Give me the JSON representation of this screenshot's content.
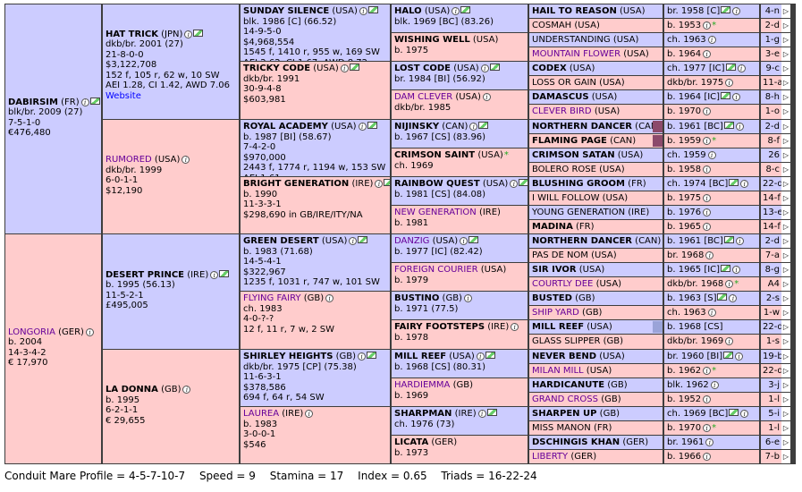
{
  "gen1": [
    {
      "name": "DABIRSIM",
      "country": "(FR)",
      "details": [
        "blk/br. 2009 (27)",
        "7-5-1-0",
        "€476,480"
      ]
    },
    {
      "name": "LONGORIA",
      "country": "(GER)",
      "details": [
        "b. 2004",
        "14-3-4-2",
        "€ 17,970"
      ]
    }
  ],
  "gen2": [
    {
      "name": "HAT TRICK",
      "country": "(JPN)",
      "details": [
        "dkb/br. 2001 (27)",
        "21-8-0-0",
        "$3,122,708",
        "152 f, 105 r, 62 w, 10 SW",
        "AEI 1.28, CI 1.42, AWD 7.06"
      ],
      "website": "Website"
    },
    {
      "name": "RUMORED",
      "country": "(USA)",
      "details": [
        "dkb/br. 1999",
        "6-0-1-1",
        "$12,190"
      ]
    },
    {
      "name": "DESERT PRINCE",
      "country": "(IRE)",
      "details": [
        "b. 1995 (56.13)",
        "11-5-2-1",
        "£495,005"
      ]
    },
    {
      "name": "LA DONNA",
      "country": "(GB)",
      "details": [
        "b. 1995",
        "6-2-1-1",
        "€ 29,655"
      ]
    }
  ],
  "gen3": [
    {
      "name": "SUNDAY SILENCE",
      "country": "(USA)",
      "details": [
        "blk. 1986 [C] (66.52)",
        "14-9-5-0",
        "$4,968,554",
        "1545 f, 1410 r, 955 w, 169 SW",
        "AEI 2.62, CI 1.67, AWD 8.72"
      ]
    },
    {
      "name": "TRICKY CODE",
      "country": "(USA)",
      "details": [
        "dkb/br. 1991",
        "30-9-4-8",
        "$603,981"
      ]
    },
    {
      "name": "ROYAL ACADEMY",
      "country": "(USA)",
      "details": [
        "b. 1987 [BI] (58.67)",
        "7-4-2-0",
        "$970,000",
        "2443 f, 1774 r, 1194 w, 153 SW",
        "AEI 1.61"
      ]
    },
    {
      "name": "BRIGHT GENERATION",
      "country": "(IRE)",
      "details": [
        "b. 1990",
        "11-3-3-1",
        "$298,690 in GB/IRE/ITY/NA"
      ]
    },
    {
      "name": "GREEN DESERT",
      "country": "(USA)",
      "details": [
        "b. 1983 (71.68)",
        "14-5-4-1",
        "$322,967",
        "1235 f, 1031 r, 747 w, 101 SW"
      ]
    },
    {
      "name": "FLYING FAIRY",
      "country": "(GB)",
      "details": [
        "ch. 1983",
        "4-0-?-?",
        "12 f, 11 r, 7 w, 2 SW"
      ]
    },
    {
      "name": "SHIRLEY HEIGHTS",
      "country": "(GB)",
      "details": [
        "dkb/br. 1975 [CP] (75.38)",
        "11-6-3-1",
        "$378,586",
        "694 f, 64 r, 54 SW"
      ]
    },
    {
      "name": "LAUREA",
      "country": "(IRE)",
      "details": [
        "b. 1983",
        "3-0-0-1",
        "$546"
      ]
    }
  ],
  "gen4": [
    {
      "name": "HALO",
      "country": "(USA)",
      "details": [
        "blk. 1969 [BC] (83.26)"
      ]
    },
    {
      "name": "WISHING WELL",
      "country": "(USA)",
      "details": [
        "b. 1975"
      ]
    },
    {
      "name": "LOST CODE",
      "country": "(USA)",
      "details": [
        "br. 1984 [BI] (56.92)"
      ]
    },
    {
      "name": "DAM CLEVER",
      "country": "(USA)",
      "details": [
        "dkb/br. 1985"
      ]
    },
    {
      "name": "NIJINSKY",
      "country": "(CAN)",
      "details": [
        "b. 1967 [CS] (83.96)"
      ]
    },
    {
      "name": "CRIMSON SAINT",
      "country": "(USA)",
      "details": [
        "ch. 1969"
      ]
    },
    {
      "name": "RAINBOW QUEST",
      "country": "(USA)",
      "details": [
        "b. 1981 [CS] (84.08)"
      ]
    },
    {
      "name": "NEW GENERATION",
      "country": "(IRE)",
      "details": [
        "b. 1981"
      ]
    },
    {
      "name": "DANZIG",
      "country": "(USA)",
      "details": [
        "b. 1977 [IC] (82.42)"
      ]
    },
    {
      "name": "FOREIGN COURIER",
      "country": "(USA)",
      "details": [
        "b. 1979"
      ]
    },
    {
      "name": "BUSTINO",
      "country": "(GB)",
      "details": [
        "b. 1971 (77.5)"
      ]
    },
    {
      "name": "FAIRY FOOTSTEPS",
      "country": "(IRE)",
      "details": [
        "b. 1978"
      ]
    },
    {
      "name": "MILL REEF",
      "country": "(USA)",
      "details": [
        "b. 1968 [CS] (80.31)"
      ]
    },
    {
      "name": "HARDIEMMA",
      "country": "(GB)",
      "details": [
        "b. 1969"
      ]
    },
    {
      "name": "SHARPMAN",
      "country": "(IRE)",
      "details": [
        "ch. 1976 (73)"
      ]
    },
    {
      "name": "LICATA",
      "country": "(GER)",
      "details": [
        "b. 1973"
      ]
    }
  ],
  "gen5": [
    {
      "name": "HAIL TO REASON",
      "country": "(USA)",
      "info": "br. 1958 [C]",
      "right": "4-n"
    },
    {
      "name": "COSMAH",
      "country": "(USA)",
      "info": "b. 1953",
      "right": "2-d"
    },
    {
      "name": "UNDERSTANDING",
      "country": "(USA)",
      "info": "ch. 1963",
      "right": "1-g"
    },
    {
      "name": "MOUNTAIN FLOWER",
      "country": "(USA)",
      "info": "b. 1964",
      "right": "3-e"
    },
    {
      "name": "CODEX",
      "country": "(USA)",
      "info": "ch. 1977 [IC]",
      "right": "9-c"
    },
    {
      "name": "LOSS OR GAIN",
      "country": "(USA)",
      "info": "dkb/br. 1975",
      "right": "11-a"
    },
    {
      "name": "DAMASCUS",
      "country": "(USA)",
      "info": "b. 1964 [IC]",
      "right": "8-h"
    },
    {
      "name": "CLEVER BIRD",
      "country": "(USA)",
      "info": "b. 1970",
      "right": "1-o"
    },
    {
      "name": "NORTHERN DANCER",
      "country": "(CAN)",
      "info": "b. 1961 [BC]",
      "right": "2-d"
    },
    {
      "name": "FLAMING PAGE",
      "country": "(CAN)",
      "info": "b. 1959",
      "right": "8-f"
    },
    {
      "name": "CRIMSON SATAN",
      "country": "(USA)",
      "info": "ch. 1959",
      "right": "26"
    },
    {
      "name": "BOLERO ROSE",
      "country": "(USA)",
      "info": "b. 1958",
      "right": "8-c"
    },
    {
      "name": "BLUSHING GROOM",
      "country": "(FR)",
      "info": "ch. 1974 [BC]",
      "right": "22-d"
    },
    {
      "name": "I WILL FOLLOW",
      "country": "(USA)",
      "info": "b. 1975",
      "right": "14-f"
    },
    {
      "name": "YOUNG GENERATION",
      "country": "(IRE)",
      "info": "b. 1976",
      "right": "13-e"
    },
    {
      "name": "MADINA",
      "country": "(FR)",
      "info": "b. 1965",
      "right": "14-f"
    },
    {
      "name": "NORTHERN DANCER",
      "country": "(CAN)",
      "info": "b. 1961 [BC]",
      "right": "2-d"
    },
    {
      "name": "PAS DE NOM",
      "country": "(USA)",
      "info": "br. 1968",
      "right": "7-a"
    },
    {
      "name": "SIR IVOR",
      "country": "(USA)",
      "info": "b. 1965 [IC]",
      "right": "8-g"
    },
    {
      "name": "COURTLY DEE",
      "country": "(USA)",
      "info": "dkb/br. 1968",
      "right": "A4"
    },
    {
      "name": "BUSTED",
      "country": "(GB)",
      "info": "b. 1963 [S]",
      "right": "2-s"
    },
    {
      "name": "SHIP YARD",
      "country": "(GB)",
      "info": "ch. 1963",
      "right": "1-w"
    },
    {
      "name": "MILL REEF",
      "country": "(USA)",
      "info": "b. 1968 [CS]",
      "right": "22-d"
    },
    {
      "name": "GLASS SLIPPER",
      "country": "(GB)",
      "info": "dkb/br. 1969",
      "right": "1-s"
    },
    {
      "name": "NEVER BEND",
      "country": "(USA)",
      "info": "br. 1960 [BI]",
      "right": "19-b"
    },
    {
      "name": "MILAN MILL",
      "country": "(USA)",
      "info": "b. 1962",
      "right": "22-d"
    },
    {
      "name": "HARDICANUTE",
      "country": "(GB)",
      "info": "blk. 1962",
      "right": "3-j"
    },
    {
      "name": "GRAND CROSS",
      "country": "(GB)",
      "info": "b. 1952",
      "right": "1-l"
    },
    {
      "name": "SHARPEN UP",
      "country": "(GB)",
      "info": "ch. 1969 [BC]",
      "right": "5-i"
    },
    {
      "name": "MISS MANON",
      "country": "(FR)",
      "info": "b. 1970",
      "right": "1-l"
    },
    {
      "name": "DSCHINGIS KHAN",
      "country": "(GER)",
      "info": "br. 1961",
      "right": "6-e"
    },
    {
      "name": "LIBERTY",
      "country": "(GER)",
      "info": "b. 1966",
      "right": "7-b"
    }
  ],
  "footer": {
    "profile": "Conduit Mare Profile = 4-5-7-10-7",
    "speed": "Speed = 9",
    "stamina": "Stamina = 17",
    "index": "Index = 0.65",
    "triads": "Triads = 16-22-24"
  },
  "colors": {
    "male": "#ccccff",
    "female": "#ffcccc",
    "link": "#660099",
    "border": "#3d3d3d"
  }
}
